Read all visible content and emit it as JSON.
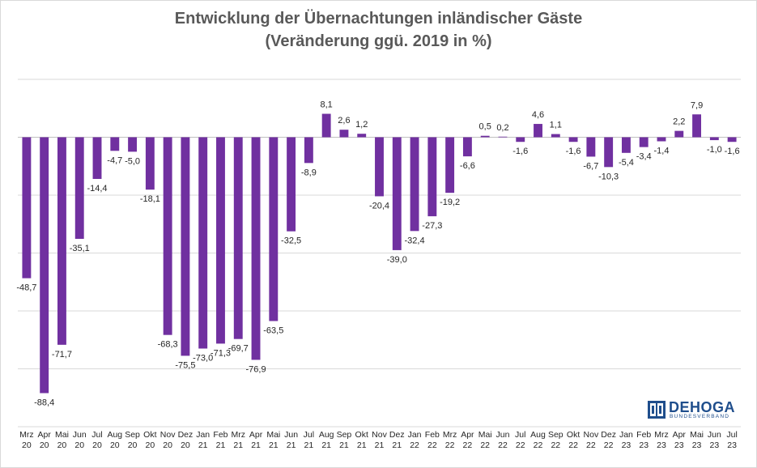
{
  "chart_data": {
    "type": "bar",
    "title": "Entwicklung der Übernachtungen inländischer Gäste",
    "subtitle": "(Veränderung ggü. 2019 in %)",
    "categories": [
      [
        "Mrz",
        "20"
      ],
      [
        "Apr",
        "20"
      ],
      [
        "Mai",
        "20"
      ],
      [
        "Jun",
        "20"
      ],
      [
        "Jul",
        "20"
      ],
      [
        "Aug",
        "20"
      ],
      [
        "Sep",
        "20"
      ],
      [
        "Okt",
        "20"
      ],
      [
        "Nov",
        "20"
      ],
      [
        "Dez",
        "20"
      ],
      [
        "Jan",
        "21"
      ],
      [
        "Feb",
        "21"
      ],
      [
        "Mrz",
        "21"
      ],
      [
        "Apr",
        "21"
      ],
      [
        "Mai",
        "21"
      ],
      [
        "Jun",
        "21"
      ],
      [
        "Jul",
        "21"
      ],
      [
        "Aug",
        "21"
      ],
      [
        "Sep",
        "21"
      ],
      [
        "Okt",
        "21"
      ],
      [
        "Nov",
        "21"
      ],
      [
        "Dez",
        "21"
      ],
      [
        "Jan",
        "22"
      ],
      [
        "Feb",
        "22"
      ],
      [
        "Mrz",
        "22"
      ],
      [
        "Apr",
        "22"
      ],
      [
        "Mai",
        "22"
      ],
      [
        "Jun",
        "22"
      ],
      [
        "Jul",
        "22"
      ],
      [
        "Aug",
        "22"
      ],
      [
        "Sep",
        "22"
      ],
      [
        "Okt",
        "22"
      ],
      [
        "Nov",
        "22"
      ],
      [
        "Dez",
        "22"
      ],
      [
        "Jan",
        "23"
      ],
      [
        "Feb",
        "23"
      ],
      [
        "Mrz",
        "23"
      ],
      [
        "Apr",
        "23"
      ],
      [
        "Mai",
        "23"
      ],
      [
        "Jun",
        "23"
      ],
      [
        "Jul",
        "23"
      ]
    ],
    "values": [
      -48.7,
      -88.4,
      -71.7,
      -35.1,
      -14.4,
      -4.7,
      -5.0,
      -18.1,
      -68.3,
      -75.5,
      -73.0,
      -71.3,
      -69.7,
      -76.9,
      -63.5,
      -32.5,
      -8.9,
      8.1,
      2.6,
      1.2,
      -20.4,
      -39.0,
      -32.4,
      -27.3,
      -19.2,
      -6.6,
      0.5,
      0.2,
      -1.6,
      4.6,
      1.1,
      -1.6,
      -6.7,
      -10.3,
      -5.4,
      -3.4,
      -1.4,
      2.2,
      7.9,
      -1.0,
      -1.6
    ],
    "labels": [
      "-48,7",
      "-88,4",
      "-71,7",
      "-35,1",
      "-14,4",
      "-4,7",
      "-5,0",
      "-18,1",
      "-68,3",
      "-75,5",
      "-73,0",
      "-71,3",
      "-69,7",
      "-76,9",
      "-63,5",
      "-32,5",
      "-8,9",
      "8,1",
      "2,6",
      "1,2",
      "-20,4",
      "-39,0",
      "-32,4",
      "-27,3",
      "-19,2",
      "-6,6",
      "0,5",
      "0,2",
      "-1,6",
      "4,6",
      "1,1",
      "-1,6",
      "-6,7",
      "-10,3",
      "-5,4",
      "-3,4",
      "-1,4",
      "2,2",
      "7,9",
      "-1,0",
      "-1,6"
    ],
    "ylim": [
      -100,
      20
    ],
    "grid": true,
    "bar_color": "#7030a0",
    "legend": "none"
  },
  "logo": {
    "name": "DEHOGA",
    "sub": "BUNDESVERBAND",
    "color": "#1f4e8c"
  }
}
